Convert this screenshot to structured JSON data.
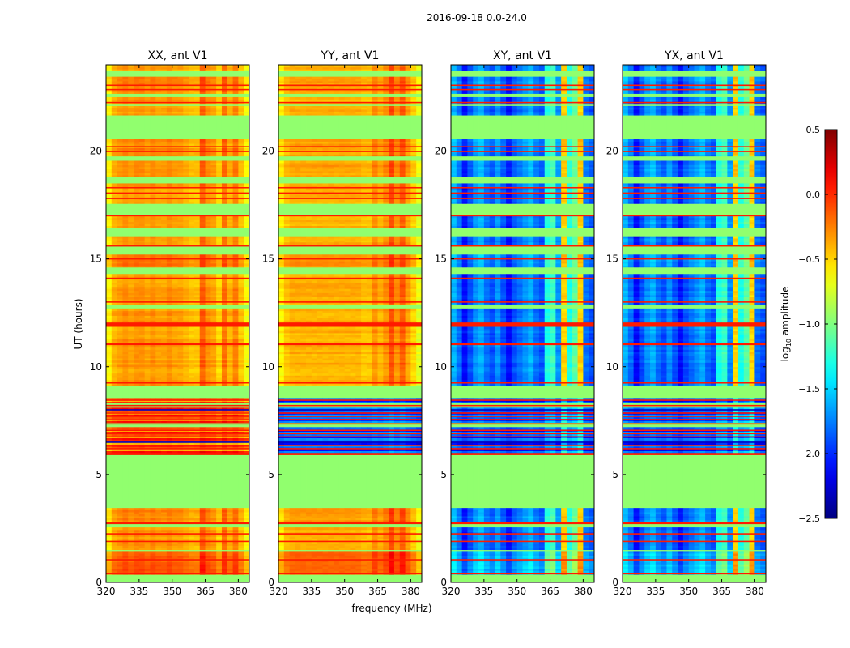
{
  "chart_data": {
    "type": "heatmap",
    "title": "2016-09-18 0.0-24.0",
    "xlabel": "frequency (MHz)",
    "ylabel": "UT (hours)",
    "xlim": [
      320,
      385
    ],
    "ylim": [
      0,
      24
    ],
    "xticks": [
      320,
      335,
      350,
      365,
      380
    ],
    "yticks": [
      0,
      5,
      10,
      15,
      20
    ],
    "colorbar": {
      "label": "log10 amplitude",
      "label_main": "log",
      "label_sub": "10",
      "label_rest": " amplitude",
      "range": [
        -2.5,
        0.5
      ],
      "ticks": [
        "0.5",
        "0.0",
        "−0.5",
        "−1.0",
        "−1.5",
        "−2.0",
        "−2.5"
      ],
      "tick_values": [
        0.5,
        0.0,
        -0.5,
        -1.0,
        -1.5,
        -2.0,
        -2.5
      ],
      "colormap": "jet"
    },
    "freq_bins_mhz": [
      320,
      322.5,
      325,
      327.5,
      330,
      332.5,
      335,
      337.5,
      340,
      342.5,
      345,
      347.5,
      350,
      352.5,
      355,
      357.5,
      360,
      362.5,
      365,
      367.5,
      370,
      372.5,
      375,
      377.5,
      380,
      382.5
    ],
    "flag_value": -0.95,
    "line_value": 0.05,
    "panels": [
      {
        "title": "XX, ant V1",
        "base": -0.35,
        "stripe": -0.3,
        "profile": [
          -0.25,
          -0.05,
          0,
          0.05,
          0,
          0.05,
          0.05,
          0,
          0.05,
          0,
          0,
          0.05,
          0,
          0,
          -0.05,
          -0.1,
          -0.1,
          0.2,
          0.05,
          0.0,
          -0.15,
          0.15,
          -0.05,
          0.1,
          -0.1,
          -0.3
        ]
      },
      {
        "title": "YY, ant V1",
        "base": -0.4,
        "stripe": -2.0,
        "profile": [
          -0.2,
          -0.05,
          0,
          0,
          0,
          0,
          0,
          0,
          0,
          0,
          0,
          0,
          0,
          0,
          0,
          -0.05,
          -0.05,
          0.1,
          0.0,
          0.1,
          0.3,
          0.1,
          0.25,
          0.05,
          -0.1,
          -0.3
        ]
      },
      {
        "title": "XY, ant V1",
        "base": -1.9,
        "stripe": -2.1,
        "profile": [
          0.3,
          0.1,
          -0.2,
          0,
          0.2,
          0.3,
          0.1,
          0,
          0.2,
          0,
          -0.2,
          0,
          0.1,
          0.2,
          0.3,
          0.1,
          0,
          0.6,
          0.7,
          0.2,
          1.4,
          0.6,
          0.8,
          1.4,
          0.1,
          0
        ]
      },
      {
        "title": "YX, ant V1",
        "base": -1.9,
        "stripe": -2.1,
        "profile": [
          0.3,
          0.1,
          -0.2,
          0,
          0.2,
          0.3,
          0.1,
          0,
          0.2,
          0,
          -0.2,
          0,
          0.1,
          0.2,
          0.3,
          0.1,
          0,
          0.6,
          0.7,
          0.2,
          1.4,
          0.6,
          0.8,
          1.4,
          0.1,
          0
        ]
      }
    ],
    "time_segments": [
      [
        23.7,
        24,
        "d",
        0
      ],
      [
        23.45,
        23.7,
        "f",
        0
      ],
      [
        22.65,
        23.45,
        "d",
        0.05
      ],
      [
        22.5,
        22.65,
        "f",
        0
      ],
      [
        21.65,
        22.5,
        "d",
        0
      ],
      [
        20.55,
        21.65,
        "f",
        0
      ],
      [
        19.75,
        20.55,
        "d",
        0.05
      ],
      [
        19.55,
        19.75,
        "f",
        0
      ],
      [
        18.8,
        19.55,
        "d",
        0.05
      ],
      [
        18.5,
        18.8,
        "f",
        0
      ],
      [
        17.55,
        18.5,
        "d",
        0
      ],
      [
        17.0,
        17.55,
        "f",
        0
      ],
      [
        16.45,
        17.0,
        "d",
        0
      ],
      [
        16.05,
        16.45,
        "f",
        0
      ],
      [
        15.6,
        16.05,
        "d",
        0
      ],
      [
        15.2,
        15.6,
        "f",
        0
      ],
      [
        14.6,
        15.2,
        "d",
        0.1
      ],
      [
        14.3,
        14.6,
        "f",
        0
      ],
      [
        12.85,
        14.3,
        "d",
        0
      ],
      [
        12.7,
        12.85,
        "f",
        0
      ],
      [
        12.05,
        12.7,
        "d",
        0
      ],
      [
        11.85,
        12.05,
        "r",
        0
      ],
      [
        11.1,
        11.85,
        "d",
        0
      ],
      [
        11.0,
        11.1,
        "r",
        0
      ],
      [
        9.1,
        11.0,
        "d",
        0
      ],
      [
        8.55,
        9.1,
        "f",
        0
      ],
      [
        8.3,
        8.55,
        "s",
        0
      ],
      [
        8.1,
        8.3,
        "f",
        0
      ],
      [
        7.4,
        8.1,
        "s",
        0
      ],
      [
        7.2,
        7.4,
        "f",
        0
      ],
      [
        6.0,
        7.2,
        "s",
        0
      ],
      [
        5.9,
        6.0,
        "r",
        0
      ],
      [
        3.45,
        5.9,
        "f",
        0
      ],
      [
        2.8,
        3.45,
        "d",
        0.05
      ],
      [
        2.7,
        2.8,
        "r",
        0
      ],
      [
        2.55,
        2.7,
        "f",
        0
      ],
      [
        1.5,
        2.55,
        "d",
        0
      ],
      [
        1.45,
        1.5,
        "f",
        0
      ],
      [
        0.35,
        1.45,
        "d",
        0.2
      ],
      [
        0,
        0.35,
        "f",
        0
      ]
    ],
    "time_lines": [
      [
        23.05,
        "r"
      ],
      [
        22.85,
        "r"
      ],
      [
        22.25,
        "r"
      ],
      [
        22.12,
        "f"
      ],
      [
        20.2,
        "r"
      ],
      [
        19.98,
        "r"
      ],
      [
        18.3,
        "r"
      ],
      [
        18.05,
        "r"
      ],
      [
        17.8,
        "r"
      ],
      [
        17.0,
        "r"
      ],
      [
        15.6,
        "r"
      ],
      [
        15.0,
        "r"
      ],
      [
        14.1,
        "r"
      ],
      [
        13.0,
        "r"
      ],
      [
        9.25,
        "r"
      ],
      [
        8.45,
        "r"
      ],
      [
        8.2,
        "r"
      ],
      [
        8.0,
        "b"
      ],
      [
        7.85,
        "r"
      ],
      [
        7.7,
        "r"
      ],
      [
        7.55,
        "r"
      ],
      [
        7.35,
        "r"
      ],
      [
        7.05,
        "r"
      ],
      [
        6.9,
        "r"
      ],
      [
        6.75,
        "r"
      ],
      [
        6.5,
        "b"
      ],
      [
        6.35,
        "r"
      ],
      [
        6.2,
        "r"
      ],
      [
        2.25,
        "r"
      ],
      [
        1.9,
        "r"
      ],
      [
        1.05,
        "r"
      ],
      [
        0.4,
        "r"
      ]
    ]
  }
}
